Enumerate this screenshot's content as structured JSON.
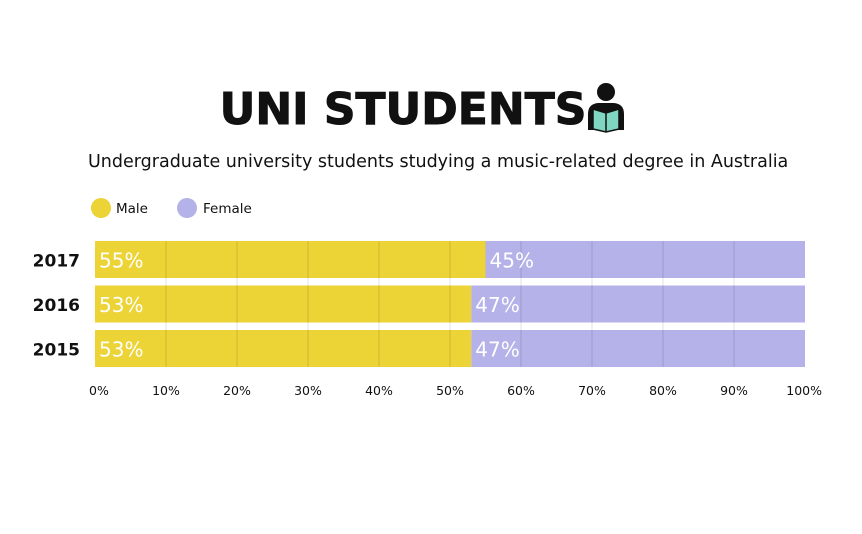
{
  "chart_data": {
    "type": "bar",
    "orientation": "horizontal",
    "stacked": true,
    "title": "UNI STUDENTS",
    "subtitle": "Undergraduate university students studying a music-related degree in Australia",
    "title_icon": "reading-student-icon",
    "categories": [
      "2017",
      "2016",
      "2015"
    ],
    "series": [
      {
        "name": "Male",
        "color": "#ecd336",
        "values": [
          55,
          53,
          53
        ],
        "labels": [
          "55%",
          "53%",
          "53%"
        ]
      },
      {
        "name": "Female",
        "color": "#b4b2e8",
        "values": [
          45,
          47,
          47
        ],
        "labels": [
          "45%",
          "47%",
          "47%"
        ]
      }
    ],
    "xlim": [
      0,
      100
    ],
    "xticks": [
      "0%",
      "10%",
      "20%",
      "30%",
      "40%",
      "50%",
      "60%",
      "70%",
      "80%",
      "90%",
      "100%"
    ],
    "grid": true,
    "legend_position": "top-left"
  }
}
